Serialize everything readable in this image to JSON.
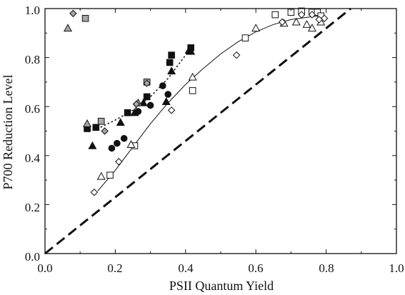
{
  "chart_data": {
    "type": "scatter",
    "xlabel": "PSII Quantum Yield",
    "ylabel": "P700 Reduction Level",
    "xlim": [
      0.0,
      1.0
    ],
    "ylim": [
      0.0,
      1.0
    ],
    "x_ticks": [
      "0.0",
      "0.2",
      "0.4",
      "0.6",
      "0.8",
      "1.0"
    ],
    "y_ticks": [
      "0.0",
      "0.2",
      "0.4",
      "0.6",
      "0.8",
      "1.0"
    ],
    "grid": false,
    "legend": "none",
    "series": [
      {
        "marker": "square",
        "fill": "#111111",
        "points": [
          [
            0.12,
            0.51
          ],
          [
            0.145,
            0.515
          ],
          [
            0.235,
            0.575
          ],
          [
            0.29,
            0.64
          ],
          [
            0.355,
            0.78
          ],
          [
            0.36,
            0.81
          ],
          [
            0.415,
            0.84
          ]
        ]
      },
      {
        "marker": "triangle",
        "fill": "#111111",
        "points": [
          [
            0.135,
            0.44
          ],
          [
            0.215,
            0.535
          ],
          [
            0.255,
            0.575
          ],
          [
            0.28,
            0.615
          ],
          [
            0.345,
            0.62
          ],
          [
            0.36,
            0.745
          ],
          [
            0.41,
            0.83
          ],
          [
            0.415,
            0.825
          ]
        ]
      },
      {
        "marker": "circle",
        "fill": "#111111",
        "points": [
          [
            0.19,
            0.43
          ],
          [
            0.205,
            0.45
          ],
          [
            0.225,
            0.47
          ],
          [
            0.265,
            0.58
          ],
          [
            0.3,
            0.605
          ],
          [
            0.335,
            0.685
          ],
          [
            0.35,
            0.65
          ]
        ]
      },
      {
        "marker": "square",
        "fill": "#a6a6a6",
        "points": [
          [
            0.115,
            0.96
          ],
          [
            0.16,
            0.54
          ],
          [
            0.29,
            0.7
          ]
        ]
      },
      {
        "marker": "triangle",
        "fill": "#a6a6a6",
        "points": [
          [
            0.065,
            0.92
          ],
          [
            0.12,
            0.53
          ],
          [
            0.265,
            0.615
          ]
        ]
      },
      {
        "marker": "diamond",
        "fill": "#a6a6a6",
        "points": [
          [
            0.08,
            0.98
          ],
          [
            0.17,
            0.5
          ],
          [
            0.26,
            0.61
          ],
          [
            0.29,
            0.695
          ]
        ]
      },
      {
        "marker": "square",
        "fill": "#ffffff",
        "points": [
          [
            0.185,
            0.32
          ],
          [
            0.255,
            0.44
          ],
          [
            0.42,
            0.665
          ],
          [
            0.57,
            0.88
          ],
          [
            0.655,
            0.975
          ],
          [
            0.7,
            0.985
          ],
          [
            0.73,
            0.99
          ],
          [
            0.76,
            0.985
          ],
          [
            0.775,
            0.985
          ],
          [
            0.785,
            0.97
          ]
        ]
      },
      {
        "marker": "triangle",
        "fill": "#ffffff",
        "points": [
          [
            0.16,
            0.315
          ],
          [
            0.245,
            0.445
          ],
          [
            0.42,
            0.72
          ],
          [
            0.6,
            0.92
          ],
          [
            0.68,
            0.94
          ],
          [
            0.715,
            0.945
          ],
          [
            0.745,
            0.935
          ],
          [
            0.76,
            0.92
          ],
          [
            0.785,
            0.945
          ]
        ]
      },
      {
        "marker": "diamond",
        "fill": "#ffffff",
        "points": [
          [
            0.14,
            0.25
          ],
          [
            0.21,
            0.375
          ],
          [
            0.36,
            0.585
          ],
          [
            0.545,
            0.81
          ],
          [
            0.675,
            0.945
          ],
          [
            0.73,
            0.975
          ],
          [
            0.76,
            0.975
          ],
          [
            0.78,
            0.955
          ],
          [
            0.795,
            0.96
          ]
        ]
      }
    ],
    "lines": [
      {
        "style": "dashed",
        "width": 3,
        "x": [
          0.0,
          0.87
        ],
        "y": [
          0.0,
          1.0
        ]
      },
      {
        "style": "solid",
        "width": 1,
        "x": [
          0.15,
          0.2,
          0.25,
          0.3,
          0.35,
          0.4,
          0.45,
          0.5,
          0.55,
          0.6,
          0.65,
          0.7,
          0.75,
          0.78
        ],
        "y": [
          0.255,
          0.34,
          0.435,
          0.53,
          0.615,
          0.69,
          0.755,
          0.815,
          0.865,
          0.905,
          0.935,
          0.955,
          0.965,
          0.97
        ]
      },
      {
        "style": "dotted",
        "width": 1.5,
        "x": [
          0.115,
          0.15,
          0.2,
          0.25,
          0.3,
          0.35,
          0.4,
          0.42
        ],
        "y": [
          0.5,
          0.51,
          0.545,
          0.585,
          0.64,
          0.715,
          0.81,
          0.845
        ]
      }
    ]
  }
}
